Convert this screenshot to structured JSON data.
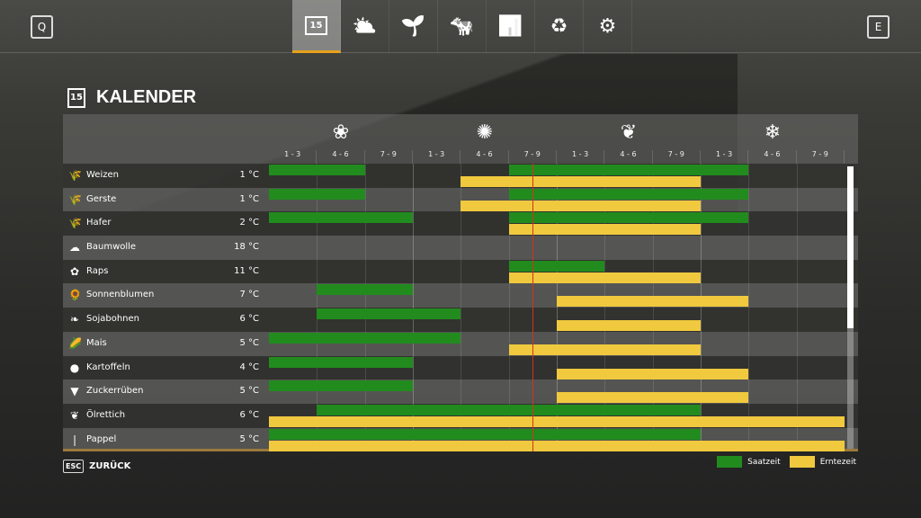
{
  "nav": {
    "left_key": "Q",
    "right_key": "E",
    "tabs": [
      {
        "icon": "calendar-icon",
        "glyph": "15",
        "active": true
      },
      {
        "icon": "weather-icon",
        "glyph": "⛅"
      },
      {
        "icon": "seedling-icon",
        "glyph": "🌱"
      },
      {
        "icon": "cow-icon",
        "glyph": "🐄"
      },
      {
        "icon": "chart-icon",
        "glyph": "📊"
      },
      {
        "icon": "cycle-icon",
        "glyph": "♻"
      },
      {
        "icon": "gears-icon",
        "glyph": "⚙"
      }
    ]
  },
  "page": {
    "title": "KALENDER",
    "calendar_day": "15"
  },
  "seasons": [
    {
      "icon": "flower-icon",
      "glyph": "❀"
    },
    {
      "icon": "sun-icon",
      "glyph": "✺"
    },
    {
      "icon": "leaf-icon",
      "glyph": "❦"
    },
    {
      "icon": "snowflake-icon",
      "glyph": "❄"
    }
  ],
  "periods": [
    "1 - 3",
    "4 - 6",
    "7 - 9",
    "1 - 3",
    "4 - 6",
    "7 - 9",
    "1 - 3",
    "4 - 6",
    "7 - 9",
    "1 - 3",
    "4 - 6",
    "7 - 9"
  ],
  "current_period": 5.5,
  "colors": {
    "sow": "#228b1e",
    "harvest": "#f0c93e",
    "accent": "#e8a21c",
    "now_line": "#d2341a"
  },
  "crops": [
    {
      "name": "Weizen",
      "temp": "1 °C",
      "glyph": "🌾",
      "sow": [
        [
          0,
          2
        ],
        [
          5,
          10
        ]
      ],
      "harvest": [
        [
          4,
          9
        ]
      ]
    },
    {
      "name": "Gerste",
      "temp": "1 °C",
      "glyph": "🌾",
      "sow": [
        [
          0,
          2
        ],
        [
          5,
          10
        ]
      ],
      "harvest": [
        [
          4,
          9
        ]
      ]
    },
    {
      "name": "Hafer",
      "temp": "2 °C",
      "glyph": "🌾",
      "sow": [
        [
          0,
          3
        ],
        [
          5,
          10
        ]
      ],
      "harvest": [
        [
          5,
          9
        ]
      ]
    },
    {
      "name": "Baumwolle",
      "temp": "18 °C",
      "glyph": "☁",
      "sow": [],
      "harvest": []
    },
    {
      "name": "Raps",
      "temp": "11 °C",
      "glyph": "✿",
      "sow": [
        [
          5,
          7
        ]
      ],
      "harvest": [
        [
          5,
          9
        ]
      ]
    },
    {
      "name": "Sonnenblumen",
      "temp": "7 °C",
      "glyph": "🌻",
      "sow": [
        [
          1,
          3
        ]
      ],
      "harvest": [
        [
          6,
          10
        ]
      ]
    },
    {
      "name": "Sojabohnen",
      "temp": "6 °C",
      "glyph": "❧",
      "sow": [
        [
          1,
          4
        ]
      ],
      "harvest": [
        [
          6,
          9
        ]
      ]
    },
    {
      "name": "Mais",
      "temp": "5 °C",
      "glyph": "🌽",
      "sow": [
        [
          0,
          4
        ]
      ],
      "harvest": [
        [
          5,
          9
        ]
      ]
    },
    {
      "name": "Kartoffeln",
      "temp": "4 °C",
      "glyph": "●",
      "sow": [
        [
          0,
          3
        ]
      ],
      "harvest": [
        [
          6,
          10
        ]
      ]
    },
    {
      "name": "Zuckerrüben",
      "temp": "5 °C",
      "glyph": "▼",
      "sow": [
        [
          0,
          3
        ]
      ],
      "harvest": [
        [
          6,
          10
        ]
      ]
    },
    {
      "name": "Ölrettich",
      "temp": "6 °C",
      "glyph": "❦",
      "sow": [
        [
          1,
          9
        ]
      ],
      "harvest": [
        [
          0,
          12
        ]
      ]
    },
    {
      "name": "Pappel",
      "temp": "5 °C",
      "glyph": "❘",
      "sow": [
        [
          0,
          9
        ]
      ],
      "harvest": [
        [
          0,
          12
        ]
      ]
    }
  ],
  "footer": {
    "esc_key": "ESC",
    "back_label": "ZURÜCK",
    "legend_sow": "Saatzeit",
    "legend_harvest": "Erntezeit"
  }
}
